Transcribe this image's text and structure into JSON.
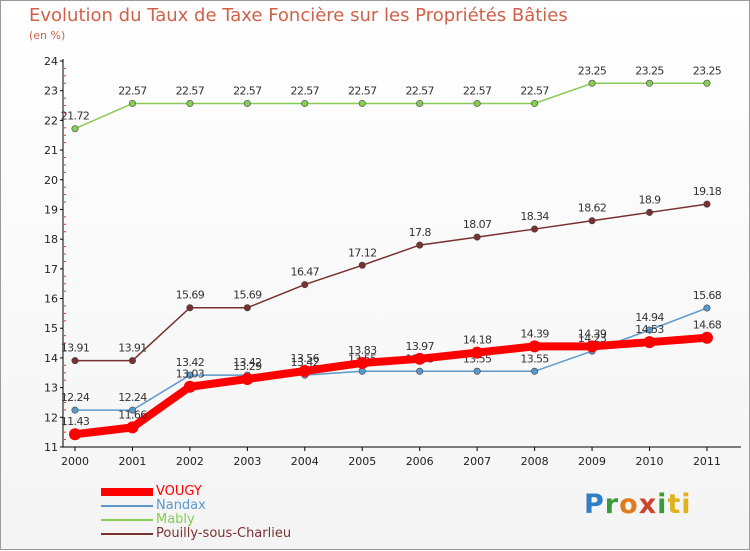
{
  "title": "Evolution du Taux de Taxe Foncière sur les Propriétés Bâties",
  "unit": "(en %)",
  "logo": {
    "text": "Proxiti",
    "letters": [
      "P",
      "r",
      "o",
      "x",
      "i",
      "ti"
    ]
  },
  "chart_data": {
    "type": "line",
    "title": "Evolution du Taux de Taxe Foncière sur les Propriétés Bâties",
    "ylabel": "(en %)",
    "xlabel": "",
    "x": [
      "2000",
      "2001",
      "2002",
      "2003",
      "2004",
      "2005",
      "2006",
      "2007",
      "2008",
      "2009",
      "2010",
      "2011"
    ],
    "ylim": [
      11,
      24
    ],
    "yticks": [
      11,
      12,
      13,
      14,
      15,
      16,
      17,
      18,
      19,
      20,
      21,
      22,
      23,
      24
    ],
    "grid": false,
    "legend_position": "bottom-left",
    "series": [
      {
        "name": "Mably",
        "color": "#88cc55",
        "thick": false,
        "values": [
          21.72,
          22.57,
          22.57,
          22.57,
          22.57,
          22.57,
          22.57,
          22.57,
          22.57,
          23.25,
          23.25,
          23.25
        ],
        "labels": [
          "21.72",
          "22.57",
          "22.57",
          "22.57",
          "22.57",
          "22.57",
          "22.57",
          "22.57",
          "22.57",
          "23.25",
          "23.25",
          "23.25"
        ]
      },
      {
        "name": "Pouilly-sous-Charlieu",
        "color": "#7a3030",
        "thick": false,
        "values": [
          13.91,
          13.91,
          15.69,
          15.69,
          16.47,
          17.12,
          17.8,
          18.07,
          18.34,
          18.62,
          18.9,
          19.18
        ],
        "labels": [
          "13.91",
          "13.91",
          "15.69",
          "15.69",
          "16.47",
          "17.12",
          "17.8",
          "18.07",
          "18.34",
          "18.62",
          "18.9",
          "19.18"
        ]
      },
      {
        "name": "Nandax",
        "color": "#5a98cc",
        "thick": false,
        "values": [
          12.24,
          12.24,
          13.42,
          13.42,
          13.42,
          13.55,
          13.55,
          13.55,
          13.55,
          14.23,
          14.94,
          15.68
        ],
        "labels": [
          "12.24",
          "12.24",
          "13.42",
          "13.42",
          "13.42",
          "13.55",
          "13.55",
          "13.55",
          "13.55",
          "14.23",
          "14.94",
          "15.68"
        ]
      },
      {
        "name": "VOUGY",
        "color": "#ff0000",
        "thick": true,
        "values": [
          11.43,
          11.66,
          13.03,
          13.29,
          13.56,
          13.83,
          13.97,
          14.18,
          14.39,
          14.39,
          14.53,
          14.68
        ],
        "labels": [
          "11.43",
          "11.66",
          "13.03",
          "13.29",
          "13.56",
          "13.83",
          "13.97",
          "14.18",
          "14.39",
          "14.39",
          "14.53",
          "14.68"
        ]
      }
    ],
    "legend": [
      {
        "name": "VOUGY",
        "color": "#ff0000",
        "thick": true
      },
      {
        "name": "Nandax",
        "color": "#5a98cc",
        "thick": false
      },
      {
        "name": "Mably",
        "color": "#88cc55",
        "thick": false
      },
      {
        "name": "Pouilly-sous-Charlieu",
        "color": "#7a3030",
        "thick": false
      }
    ]
  }
}
